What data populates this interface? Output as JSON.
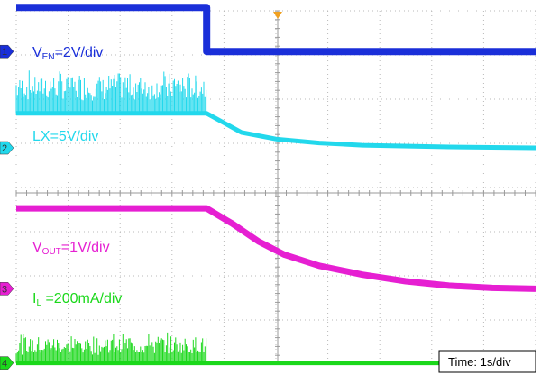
{
  "chart_data": {
    "type": "line",
    "channels": [
      {
        "id": "1",
        "label_main": "V",
        "label_sub": "EN",
        "label_rest": "=2V/div",
        "color": "#1a2fd9",
        "label_color": "#1a2fd9",
        "x": [
          0,
          2.2,
          2.2,
          6
        ],
        "y": [
          4.2,
          4.2,
          3.2,
          3.2
        ]
      },
      {
        "id": "2",
        "label_main": "LX=5V/div",
        "label_sub": "",
        "label_rest": "",
        "color": "#22d8ec",
        "label_color": "#22d8ec",
        "x": [
          0,
          2.2,
          2.6,
          3.0,
          3.5,
          4.0,
          5.0,
          6.0
        ],
        "y": [
          1.8,
          1.8,
          1.37,
          1.22,
          1.13,
          1.08,
          1.04,
          1.02
        ],
        "switching_interval": [
          0,
          2.2
        ],
        "switching_amplitude_div": [
          0.8,
          1.0
        ]
      },
      {
        "id": "3",
        "label_main": "V",
        "label_sub": "OUT",
        "label_rest": "=1V/div",
        "color": "#e61fd2",
        "label_color": "#e61fd2",
        "x": [
          0,
          2.2,
          2.5,
          2.8,
          3.1,
          3.5,
          4.0,
          4.5,
          5.0,
          5.5,
          6.0
        ],
        "y": [
          -0.35,
          -0.35,
          -0.7,
          -1.1,
          -1.4,
          -1.65,
          -1.85,
          -2.0,
          -2.1,
          -2.15,
          -2.17
        ]
      },
      {
        "id": "4",
        "label_main": "I",
        "label_sub": "L",
        "label_rest": " =200mA/div",
        "color": "#1bd81b",
        "label_color": "#1bd81b",
        "x": [
          0,
          6
        ],
        "y": [
          -3.85,
          -3.85
        ],
        "switching_interval": [
          0,
          2.2
        ],
        "switching_amplitude_div": [
          0.5,
          0.7
        ]
      }
    ],
    "time_base": "Time: 1s/div",
    "x_range": [
      0,
      6
    ],
    "divisions_x": 10,
    "divisions_y": 8,
    "grid": true,
    "trigger_marker_color": "#f0a020"
  }
}
